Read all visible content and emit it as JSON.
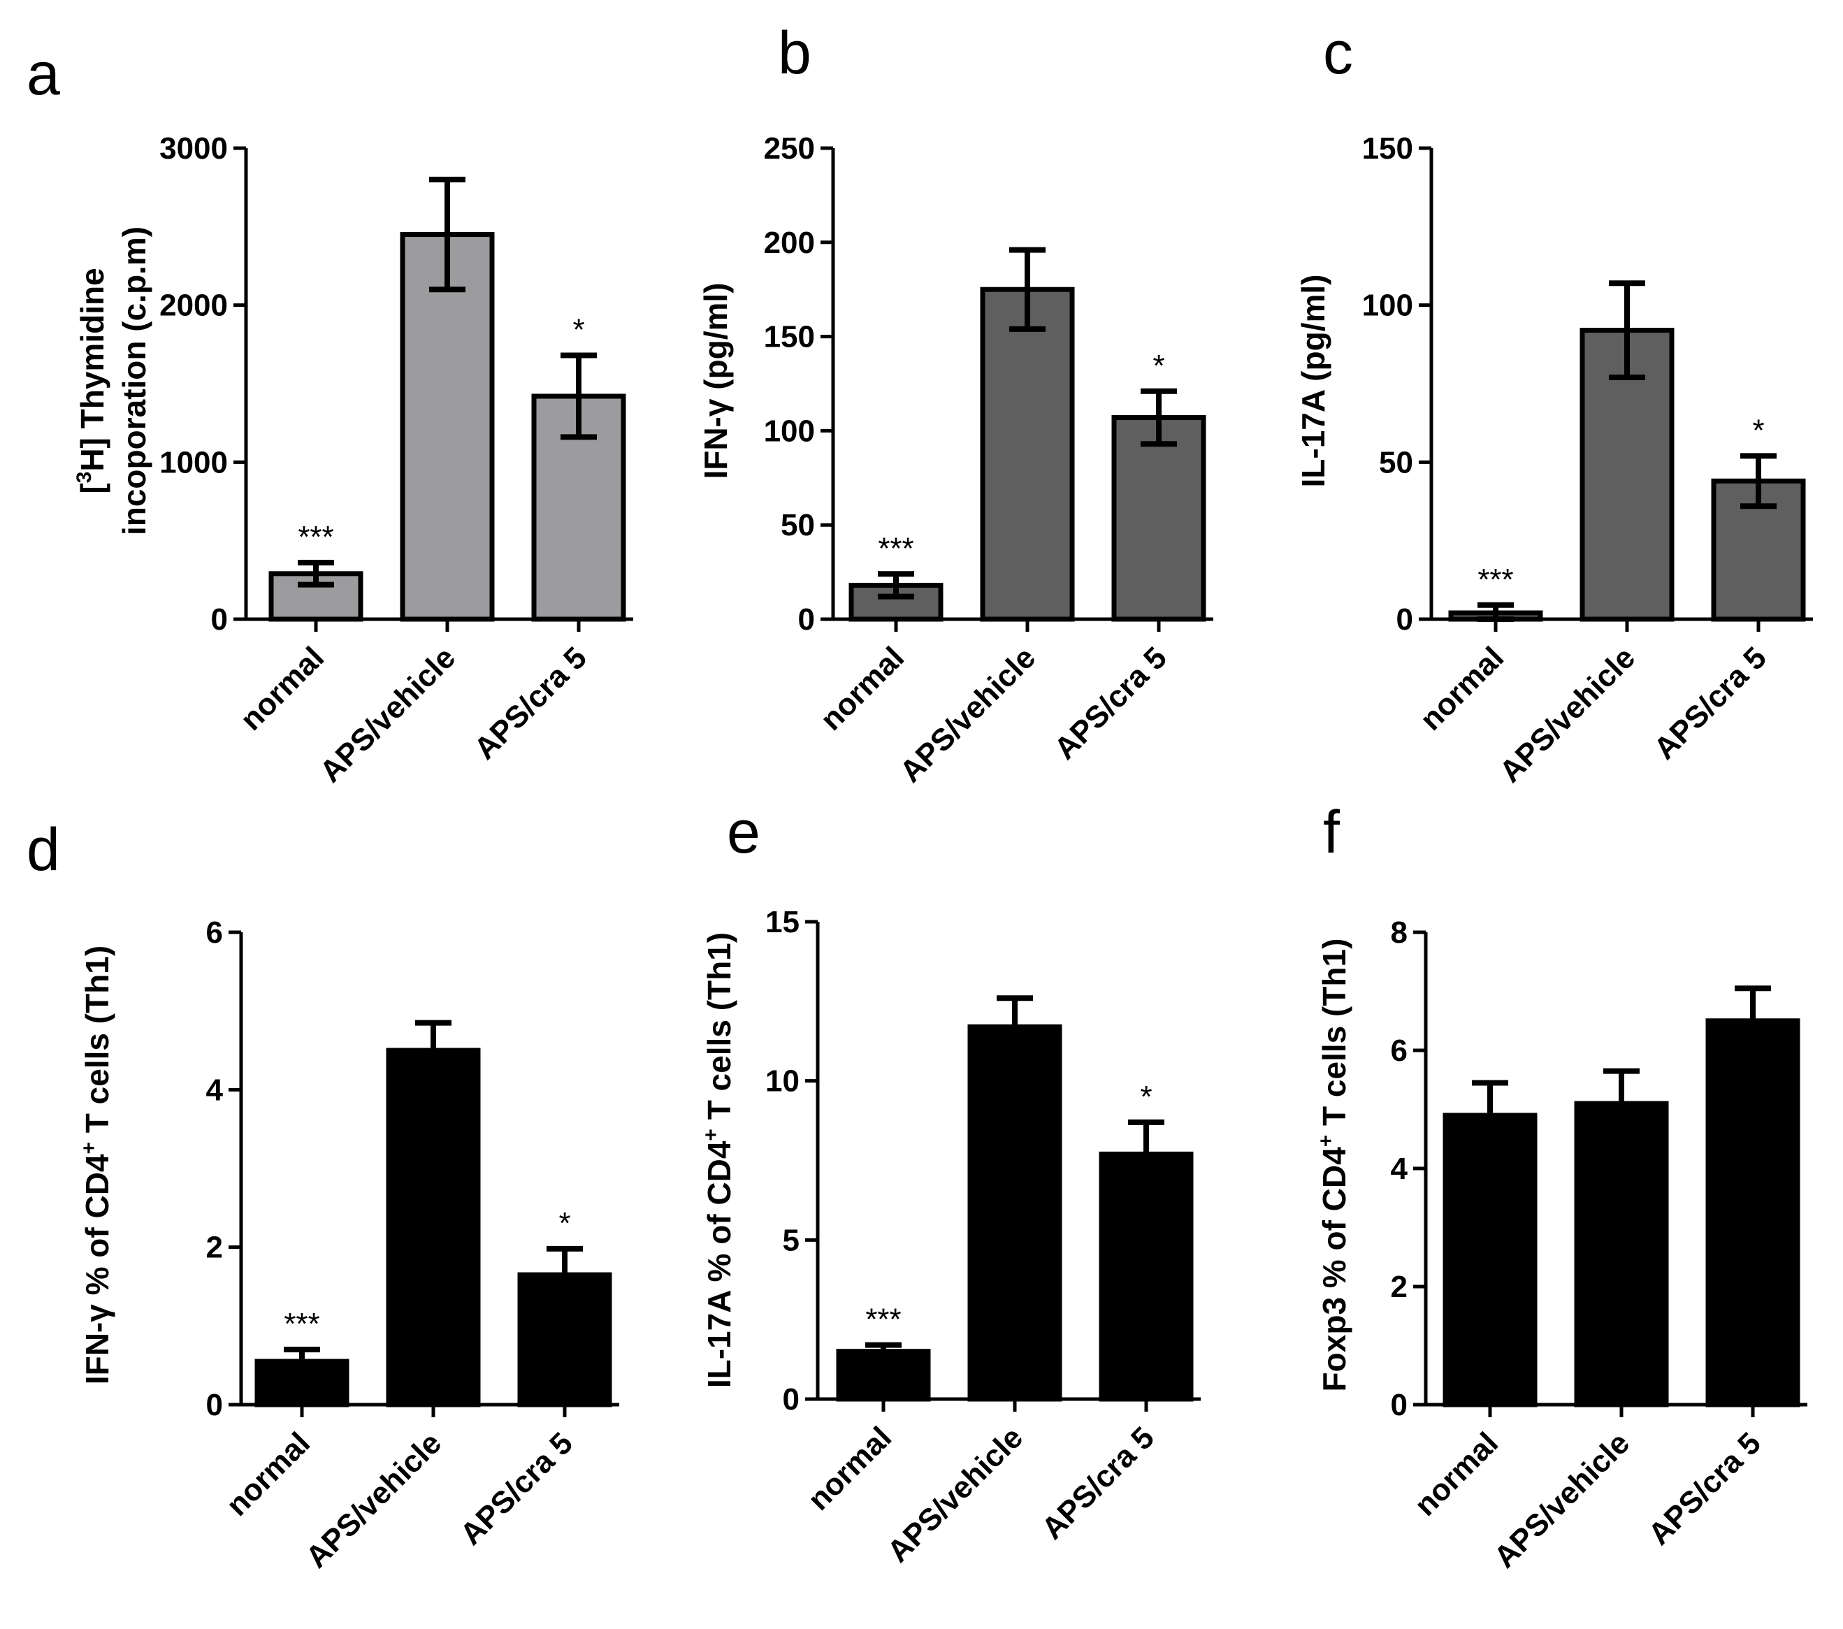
{
  "chart_data": [
    {
      "panel": "a",
      "type": "bar",
      "ylabel_sup": "3",
      "ylabel_line1_pre": "[",
      "ylabel_line1_post": "H] Thymidine",
      "ylabel_line2": "incoporation (c.p.m)",
      "categories": [
        "normal",
        "APS/vehicle",
        "APS/cra 5"
      ],
      "values": [
        290,
        2450,
        1420
      ],
      "errors": [
        70,
        350,
        260
      ],
      "significance": [
        "***",
        "",
        "*"
      ],
      "ylim": [
        0,
        3000
      ],
      "yticks": [
        0,
        1000,
        2000,
        3000
      ],
      "ytick_labels": [
        "0",
        "1000",
        "2000",
        "3000"
      ],
      "bar_color": "#9c9c9e",
      "error_style": "both"
    },
    {
      "panel": "b",
      "type": "bar",
      "ylabel": "IFN-γ (pg/ml)",
      "categories": [
        "normal",
        "APS/vehicle",
        "APS/cra 5"
      ],
      "values": [
        18,
        175,
        107
      ],
      "errors": [
        6,
        21,
        14
      ],
      "significance": [
        "***",
        "",
        "*"
      ],
      "ylim": [
        0,
        250
      ],
      "yticks": [
        0,
        50,
        100,
        150,
        200,
        250
      ],
      "ytick_labels": [
        "0",
        "50",
        "100",
        "150",
        "200",
        "250"
      ],
      "bar_color": "#5f5f5f",
      "error_style": "both"
    },
    {
      "panel": "c",
      "type": "bar",
      "ylabel": "IL-17A (pg/ml)",
      "categories": [
        "normal",
        "APS/vehicle",
        "APS/cra 5"
      ],
      "values": [
        2,
        92,
        44
      ],
      "errors": [
        2.5,
        15,
        8
      ],
      "significance": [
        "***",
        "",
        "*"
      ],
      "ylim": [
        0,
        150
      ],
      "yticks": [
        0,
        50,
        100,
        150
      ],
      "ytick_labels": [
        "0",
        "50",
        "100",
        "150"
      ],
      "bar_color": "#5f5f5f",
      "error_style": "both"
    },
    {
      "panel": "d",
      "type": "bar",
      "ylabel_pre": "IFN-γ % of CD4",
      "ylabel_sup": "+",
      "ylabel_post": " T cells (Th1)",
      "categories": [
        "normal",
        "APS/vehicle",
        "APS/cra 5"
      ],
      "values": [
        0.55,
        4.5,
        1.65
      ],
      "errors": [
        0.15,
        0.35,
        0.33
      ],
      "significance": [
        "***",
        "",
        "*"
      ],
      "ylim": [
        0,
        6
      ],
      "yticks": [
        0,
        2,
        4,
        6
      ],
      "ytick_labels": [
        "0",
        "2",
        "4",
        "6"
      ],
      "bar_color": "#000000",
      "error_style": "up"
    },
    {
      "panel": "e",
      "type": "bar",
      "ylabel_pre": "IL-17A % of CD4",
      "ylabel_sup": "+",
      "ylabel_post": " T cells (Th1)",
      "categories": [
        "normal",
        "APS/vehicle",
        "APS/cra 5"
      ],
      "values": [
        1.5,
        11.7,
        7.7
      ],
      "errors": [
        0.2,
        0.9,
        1.0
      ],
      "significance": [
        "***",
        "",
        "*"
      ],
      "ylim": [
        0,
        15
      ],
      "yticks": [
        0,
        5,
        10,
        15
      ],
      "ytick_labels": [
        "0",
        "5",
        "10",
        "15"
      ],
      "bar_color": "#000000",
      "error_style": "up"
    },
    {
      "panel": "f",
      "type": "bar",
      "ylabel_pre": "Foxp3 % of CD4",
      "ylabel_sup": "+",
      "ylabel_post": " T cells (Th1)",
      "categories": [
        "normal",
        "APS/vehicle",
        "APS/cra 5"
      ],
      "values": [
        4.9,
        5.1,
        6.5
      ],
      "errors": [
        0.55,
        0.55,
        0.55
      ],
      "significance": [
        "",
        "",
        ""
      ],
      "ylim": [
        0,
        8
      ],
      "yticks": [
        0,
        2,
        4,
        6,
        8
      ],
      "ytick_labels": [
        "0",
        "2",
        "4",
        "6",
        "8"
      ],
      "bar_color": "#000000",
      "error_style": "up"
    }
  ]
}
